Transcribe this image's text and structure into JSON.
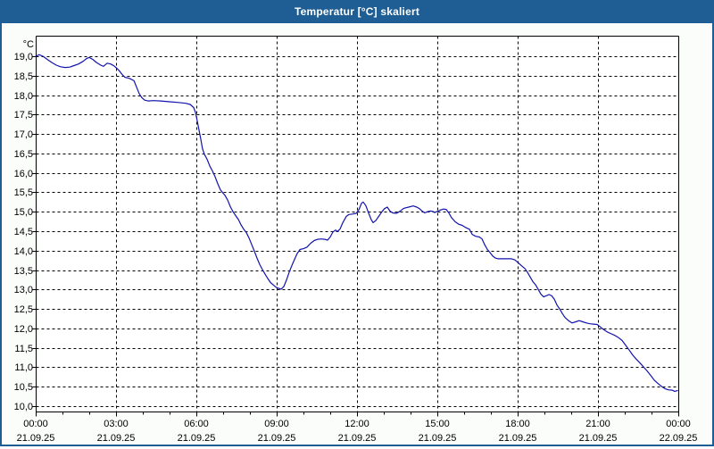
{
  "window": {
    "title": "Temperatur [°C] skaliert",
    "colors": {
      "title_bar": "#1e5e94",
      "title_text": "#ffffff",
      "border": "#1e5e94",
      "background": "#fbfdfb",
      "plot_background": "#ffffff",
      "grid": "#000000",
      "axis_text": "#000000",
      "series_line": "#1212ad"
    }
  },
  "chart_data": {
    "type": "line",
    "title": "Temperatur [°C] skaliert",
    "ylabel": "°C",
    "xlabel": "",
    "legend": "none",
    "grid": "dashed",
    "y_axis": {
      "min": 10.0,
      "max": 19.0,
      "step": 0.5,
      "tick_labels": [
        "19,0",
        "18,5",
        "18,0",
        "17,5",
        "17,0",
        "16,5",
        "16,0",
        "15,5",
        "15,0",
        "14,5",
        "14,0",
        "13,5",
        "13,0",
        "12,5",
        "12,0",
        "11,5",
        "11,0",
        "10,5",
        "10,0"
      ]
    },
    "x_axis": {
      "min_hour": 0,
      "max_hour": 24,
      "major_step_hours": 3,
      "minor_step_hours": 1,
      "ticks": [
        {
          "time": "00:00",
          "date": "21.09.25"
        },
        {
          "time": "03:00",
          "date": "21.09.25"
        },
        {
          "time": "06:00",
          "date": "21.09.25"
        },
        {
          "time": "09:00",
          "date": "21.09.25"
        },
        {
          "time": "12:00",
          "date": "21.09.25"
        },
        {
          "time": "15:00",
          "date": "21.09.25"
        },
        {
          "time": "18:00",
          "date": "21.09.25"
        },
        {
          "time": "21:00",
          "date": "21.09.25"
        },
        {
          "time": "00:00",
          "date": "22.09.25"
        }
      ]
    },
    "series": [
      {
        "name": "Temperatur",
        "color": "#1212ad",
        "points_hour_degC": [
          [
            0.0,
            19.0
          ],
          [
            0.13,
            19.04
          ],
          [
            0.27,
            19.0
          ],
          [
            0.43,
            18.92
          ],
          [
            0.6,
            18.84
          ],
          [
            0.77,
            18.77
          ],
          [
            0.93,
            18.73
          ],
          [
            1.1,
            18.71
          ],
          [
            1.27,
            18.72
          ],
          [
            1.43,
            18.76
          ],
          [
            1.6,
            18.8
          ],
          [
            1.77,
            18.87
          ],
          [
            1.9,
            18.94
          ],
          [
            2.0,
            18.97
          ],
          [
            2.13,
            18.92
          ],
          [
            2.27,
            18.84
          ],
          [
            2.43,
            18.77
          ],
          [
            2.53,
            18.74
          ],
          [
            2.67,
            18.82
          ],
          [
            2.8,
            18.8
          ],
          [
            2.93,
            18.75
          ],
          [
            3.03,
            18.69
          ],
          [
            3.13,
            18.62
          ],
          [
            3.23,
            18.53
          ],
          [
            3.33,
            18.46
          ],
          [
            3.5,
            18.43
          ],
          [
            3.67,
            18.37
          ],
          [
            3.77,
            18.2
          ],
          [
            3.87,
            18.03
          ],
          [
            3.97,
            17.93
          ],
          [
            4.07,
            17.87
          ],
          [
            4.2,
            17.85
          ],
          [
            4.4,
            17.86
          ],
          [
            4.67,
            17.85
          ],
          [
            5.0,
            17.83
          ],
          [
            5.33,
            17.81
          ],
          [
            5.6,
            17.79
          ],
          [
            5.77,
            17.76
          ],
          [
            5.9,
            17.68
          ],
          [
            5.97,
            17.55
          ],
          [
            6.03,
            17.35
          ],
          [
            6.1,
            17.1
          ],
          [
            6.17,
            16.85
          ],
          [
            6.23,
            16.62
          ],
          [
            6.3,
            16.48
          ],
          [
            6.4,
            16.35
          ],
          [
            6.5,
            16.18
          ],
          [
            6.6,
            16.05
          ],
          [
            6.7,
            15.9
          ],
          [
            6.8,
            15.72
          ],
          [
            6.9,
            15.56
          ],
          [
            6.97,
            15.5
          ],
          [
            7.07,
            15.42
          ],
          [
            7.17,
            15.3
          ],
          [
            7.27,
            15.13
          ],
          [
            7.37,
            15.0
          ],
          [
            7.47,
            14.9
          ],
          [
            7.57,
            14.8
          ],
          [
            7.67,
            14.66
          ],
          [
            7.77,
            14.55
          ],
          [
            7.87,
            14.46
          ],
          [
            7.97,
            14.32
          ],
          [
            8.07,
            14.15
          ],
          [
            8.17,
            13.98
          ],
          [
            8.27,
            13.8
          ],
          [
            8.37,
            13.64
          ],
          [
            8.47,
            13.51
          ],
          [
            8.57,
            13.39
          ],
          [
            8.67,
            13.28
          ],
          [
            8.77,
            13.18
          ],
          [
            8.87,
            13.12
          ],
          [
            8.97,
            13.06
          ],
          [
            9.07,
            13.03
          ],
          [
            9.17,
            13.01
          ],
          [
            9.27,
            13.08
          ],
          [
            9.37,
            13.25
          ],
          [
            9.47,
            13.45
          ],
          [
            9.57,
            13.62
          ],
          [
            9.67,
            13.78
          ],
          [
            9.77,
            13.93
          ],
          [
            9.87,
            14.03
          ],
          [
            10.0,
            14.05
          ],
          [
            10.13,
            14.09
          ],
          [
            10.27,
            14.19
          ],
          [
            10.4,
            14.26
          ],
          [
            10.53,
            14.29
          ],
          [
            10.67,
            14.3
          ],
          [
            10.8,
            14.29
          ],
          [
            10.9,
            14.27
          ],
          [
            11.0,
            14.35
          ],
          [
            11.1,
            14.48
          ],
          [
            11.2,
            14.53
          ],
          [
            11.27,
            14.49
          ],
          [
            11.37,
            14.56
          ],
          [
            11.47,
            14.72
          ],
          [
            11.6,
            14.88
          ],
          [
            11.7,
            14.93
          ],
          [
            11.83,
            14.94
          ],
          [
            11.97,
            14.96
          ],
          [
            12.07,
            15.05
          ],
          [
            12.17,
            15.22
          ],
          [
            12.23,
            15.25
          ],
          [
            12.33,
            15.16
          ],
          [
            12.43,
            14.97
          ],
          [
            12.53,
            14.8
          ],
          [
            12.6,
            14.72
          ],
          [
            12.7,
            14.77
          ],
          [
            12.8,
            14.87
          ],
          [
            12.93,
            15.0
          ],
          [
            13.03,
            15.08
          ],
          [
            13.13,
            15.12
          ],
          [
            13.23,
            15.02
          ],
          [
            13.33,
            14.97
          ],
          [
            13.47,
            14.96
          ],
          [
            13.6,
            15.01
          ],
          [
            13.73,
            15.08
          ],
          [
            13.8,
            15.1
          ],
          [
            13.93,
            15.12
          ],
          [
            14.1,
            15.15
          ],
          [
            14.23,
            15.12
          ],
          [
            14.33,
            15.08
          ],
          [
            14.43,
            15.02
          ],
          [
            14.53,
            14.97
          ],
          [
            14.63,
            15.0
          ],
          [
            14.73,
            15.02
          ],
          [
            14.83,
            15.01
          ],
          [
            14.9,
            14.98
          ],
          [
            15.0,
            15.01
          ],
          [
            15.1,
            15.04
          ],
          [
            15.23,
            15.07
          ],
          [
            15.33,
            15.06
          ],
          [
            15.43,
            14.97
          ],
          [
            15.53,
            14.85
          ],
          [
            15.67,
            14.74
          ],
          [
            15.8,
            14.68
          ],
          [
            15.93,
            14.65
          ],
          [
            16.07,
            14.59
          ],
          [
            16.2,
            14.55
          ],
          [
            16.3,
            14.42
          ],
          [
            16.43,
            14.37
          ],
          [
            16.57,
            14.35
          ],
          [
            16.67,
            14.3
          ],
          [
            16.77,
            14.15
          ],
          [
            16.87,
            14.03
          ],
          [
            16.97,
            13.95
          ],
          [
            17.07,
            13.86
          ],
          [
            17.17,
            13.81
          ],
          [
            17.27,
            13.79
          ],
          [
            17.43,
            13.79
          ],
          [
            17.6,
            13.79
          ],
          [
            17.77,
            13.79
          ],
          [
            17.9,
            13.76
          ],
          [
            18.0,
            13.7
          ],
          [
            18.13,
            13.62
          ],
          [
            18.27,
            13.54
          ],
          [
            18.37,
            13.44
          ],
          [
            18.47,
            13.32
          ],
          [
            18.57,
            13.2
          ],
          [
            18.67,
            13.12
          ],
          [
            18.77,
            13.0
          ],
          [
            18.87,
            12.88
          ],
          [
            18.97,
            12.81
          ],
          [
            19.07,
            12.84
          ],
          [
            19.17,
            12.87
          ],
          [
            19.27,
            12.84
          ],
          [
            19.37,
            12.75
          ],
          [
            19.47,
            12.6
          ],
          [
            19.57,
            12.5
          ],
          [
            19.67,
            12.38
          ],
          [
            19.77,
            12.28
          ],
          [
            19.9,
            12.2
          ],
          [
            20.03,
            12.14
          ],
          [
            20.17,
            12.17
          ],
          [
            20.3,
            12.2
          ],
          [
            20.43,
            12.17
          ],
          [
            20.57,
            12.14
          ],
          [
            20.7,
            12.12
          ],
          [
            20.83,
            12.11
          ],
          [
            20.97,
            12.1
          ],
          [
            21.1,
            12.03
          ],
          [
            21.23,
            11.96
          ],
          [
            21.37,
            11.9
          ],
          [
            21.5,
            11.86
          ],
          [
            21.63,
            11.82
          ],
          [
            21.77,
            11.76
          ],
          [
            21.9,
            11.69
          ],
          [
            22.03,
            11.57
          ],
          [
            22.17,
            11.44
          ],
          [
            22.3,
            11.31
          ],
          [
            22.43,
            11.21
          ],
          [
            22.57,
            11.11
          ],
          [
            22.7,
            11.01
          ],
          [
            22.83,
            10.91
          ],
          [
            22.97,
            10.79
          ],
          [
            23.1,
            10.67
          ],
          [
            23.23,
            10.59
          ],
          [
            23.37,
            10.51
          ],
          [
            23.5,
            10.45
          ],
          [
            23.63,
            10.42
          ],
          [
            23.77,
            10.41
          ],
          [
            23.87,
            10.38
          ],
          [
            23.97,
            10.4
          ]
        ]
      }
    ]
  }
}
